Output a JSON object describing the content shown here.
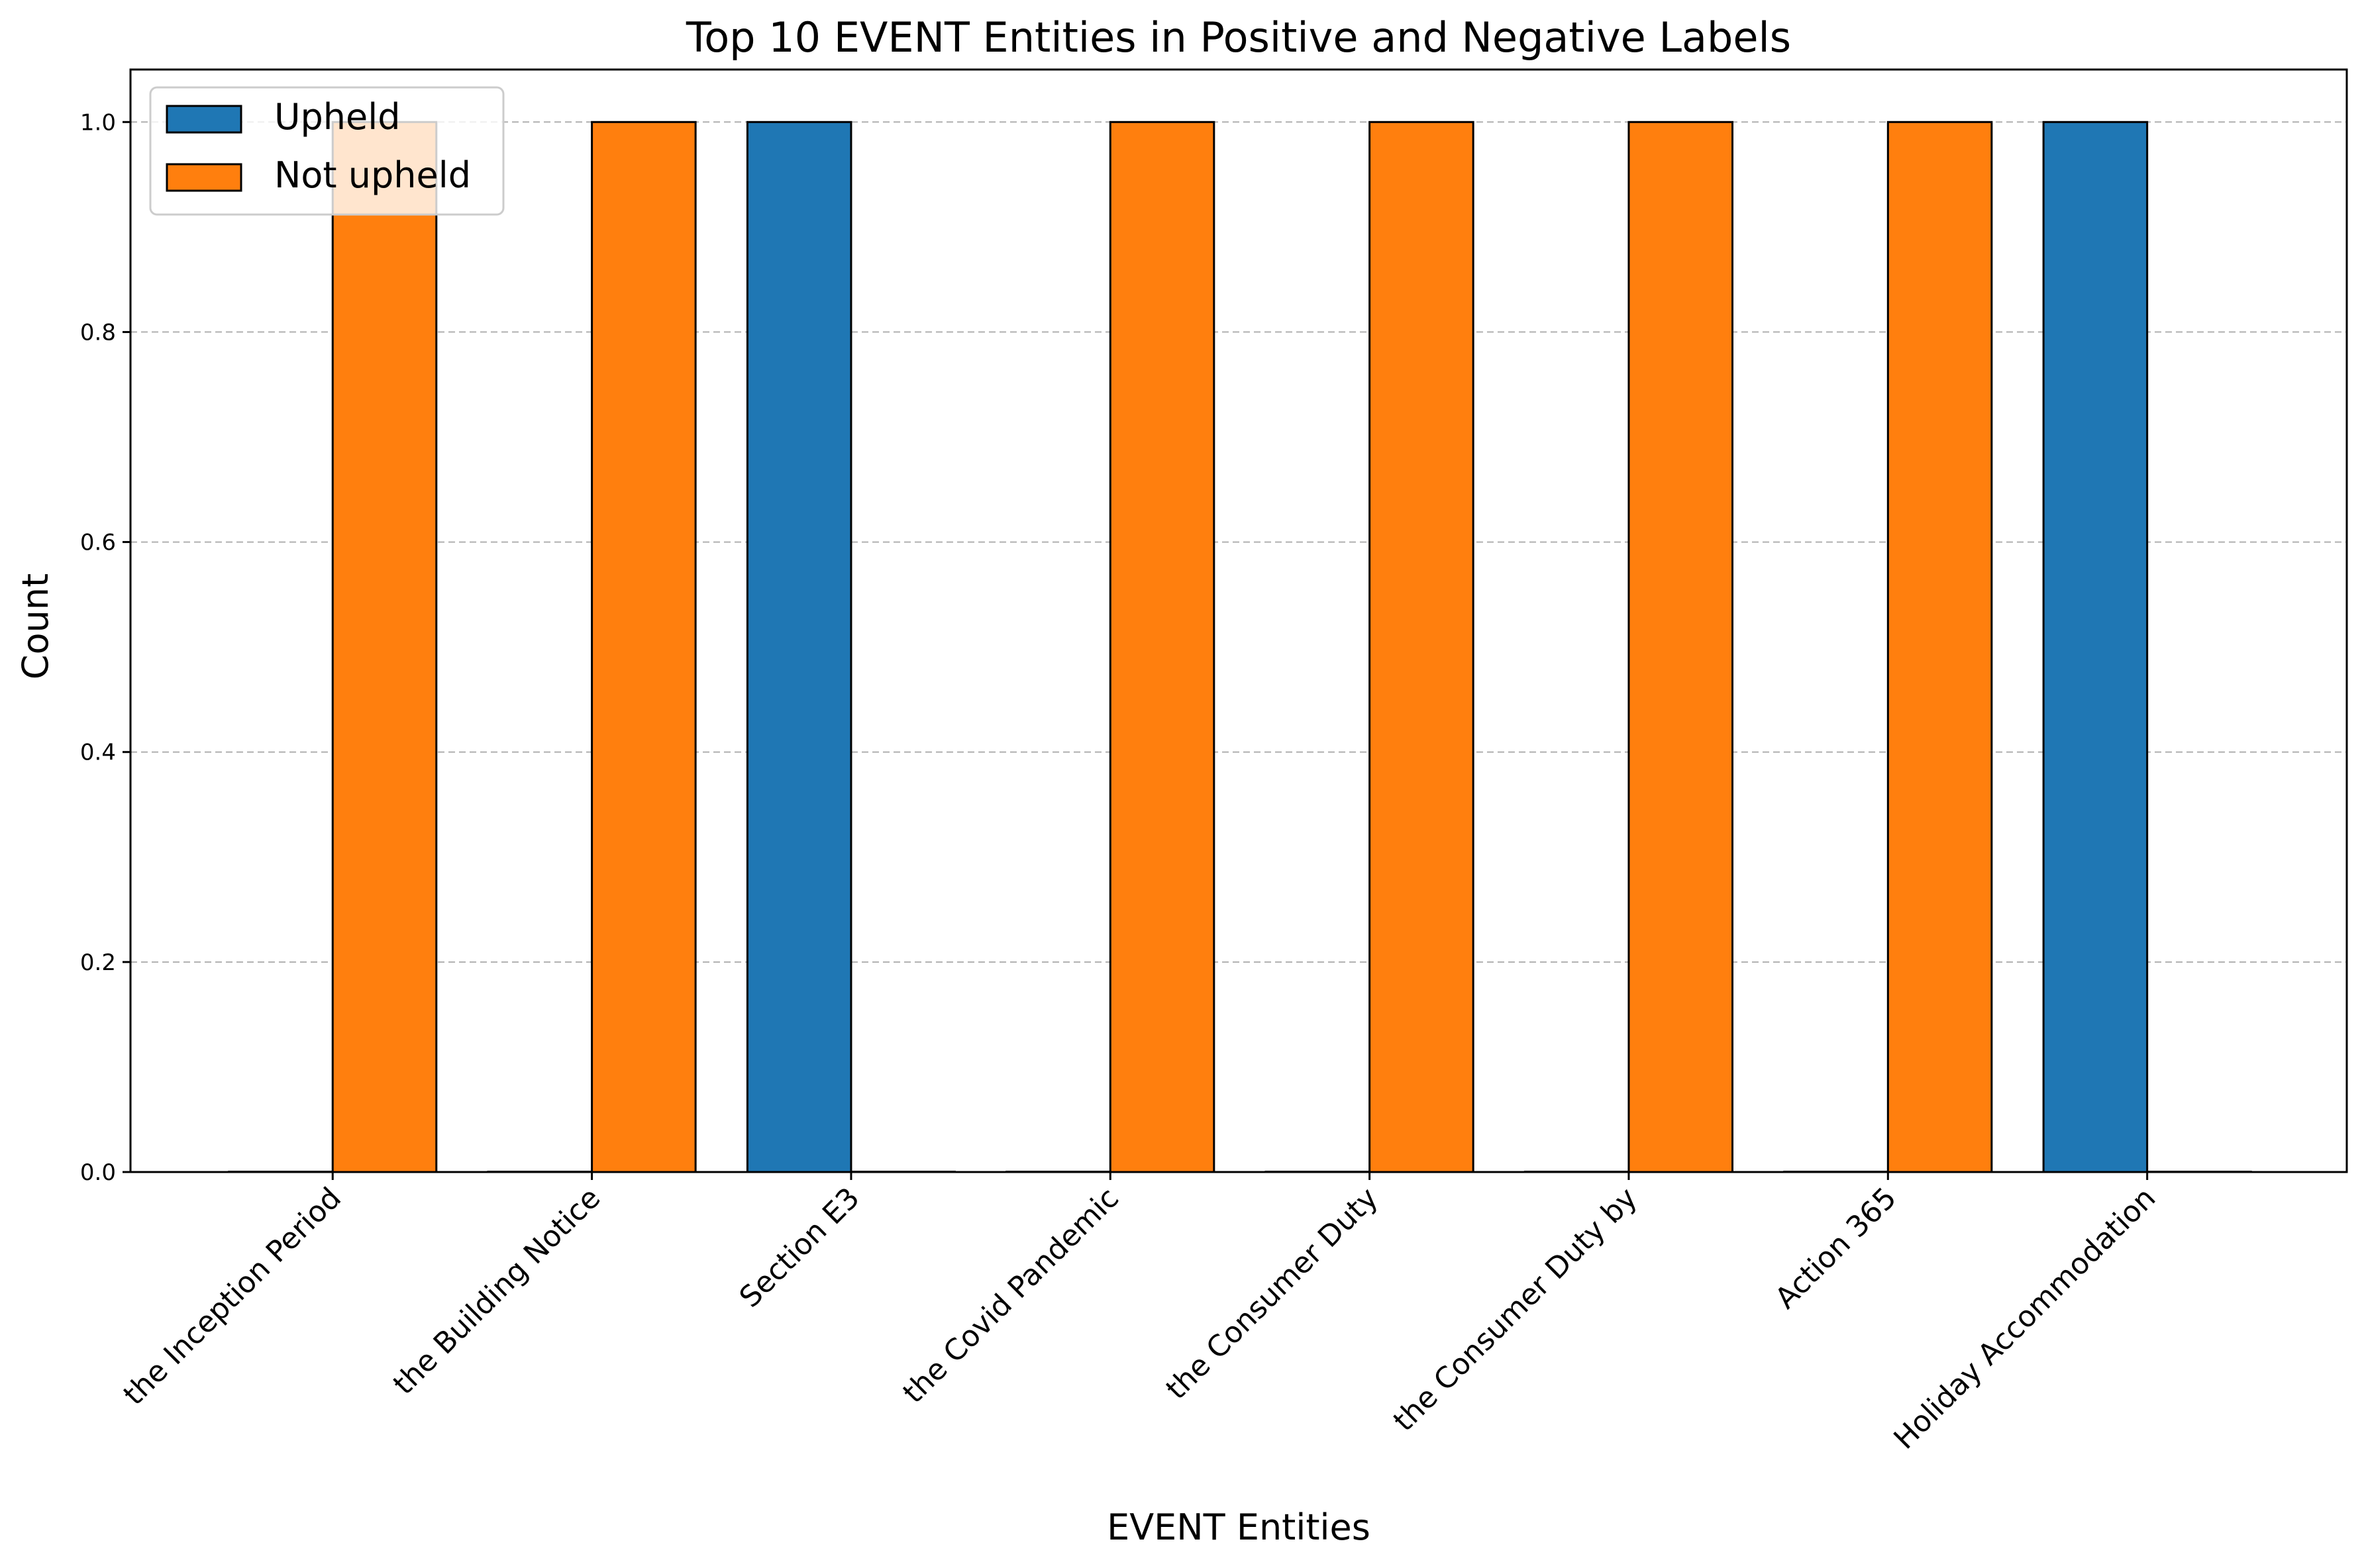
{
  "chart_data": {
    "type": "bar",
    "title": "Top 10 EVENT Entities in Positive and Negative Labels",
    "xlabel": "EVENT Entities",
    "ylabel": "Count",
    "categories": [
      "the Inception Period",
      "the Building Notice",
      "Section E3",
      "the Covid Pandemic",
      "the Consumer Duty",
      "the Consumer Duty by",
      "Action 365",
      "Holiday Accommodation"
    ],
    "series": [
      {
        "name": "Upheld",
        "color": "#1f77b4",
        "values": [
          0,
          0,
          1,
          0,
          0,
          0,
          0,
          1
        ]
      },
      {
        "name": "Not upheld",
        "color": "#ff7f0e",
        "values": [
          1,
          1,
          0,
          1,
          1,
          1,
          1,
          0
        ]
      }
    ],
    "ylim": [
      0,
      1.05
    ],
    "yticks": [
      "0.0",
      "0.2",
      "0.4",
      "0.6",
      "0.8",
      "1.0"
    ],
    "grid": "y, dashed",
    "legend_position": "top-left"
  }
}
